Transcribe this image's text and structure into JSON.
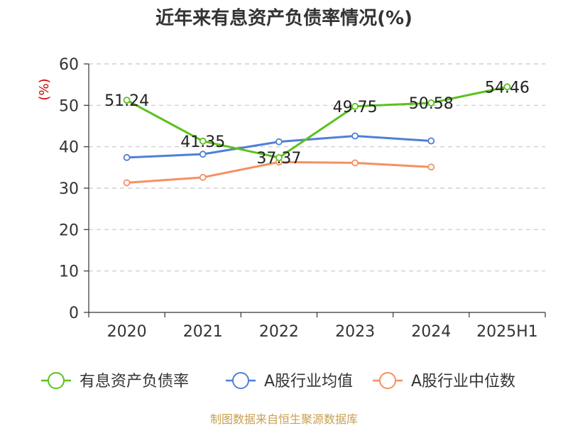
{
  "chart_data": {
    "type": "line",
    "title": "近年来有息资产负债率情况(%)",
    "ylabel": "(%)",
    "xlabel": "",
    "categories": [
      "2020",
      "2021",
      "2022",
      "2023",
      "2024",
      "2025H1"
    ],
    "ylim": [
      0,
      60
    ],
    "yticks": [
      0,
      10,
      20,
      30,
      40,
      50,
      60
    ],
    "grid": true,
    "legend_position": "bottom",
    "series": [
      {
        "name": "有息资产负债率",
        "color": "#5cc11f",
        "values": [
          51.24,
          41.35,
          37.37,
          49.75,
          50.58,
          54.46
        ],
        "labels": [
          "51.24",
          "41.35",
          "37.37",
          "49.75",
          "50.58",
          "54.46"
        ]
      },
      {
        "name": "A股行业均值",
        "color": "#4f7fd8",
        "values": [
          37.4,
          38.2,
          41.2,
          42.6,
          41.4,
          null
        ]
      },
      {
        "name": "A股行业中位数",
        "color": "#f59060",
        "values": [
          31.3,
          32.6,
          36.3,
          36.1,
          35.1,
          null
        ]
      }
    ],
    "source": "制图数据来自恒生聚源数据库"
  }
}
